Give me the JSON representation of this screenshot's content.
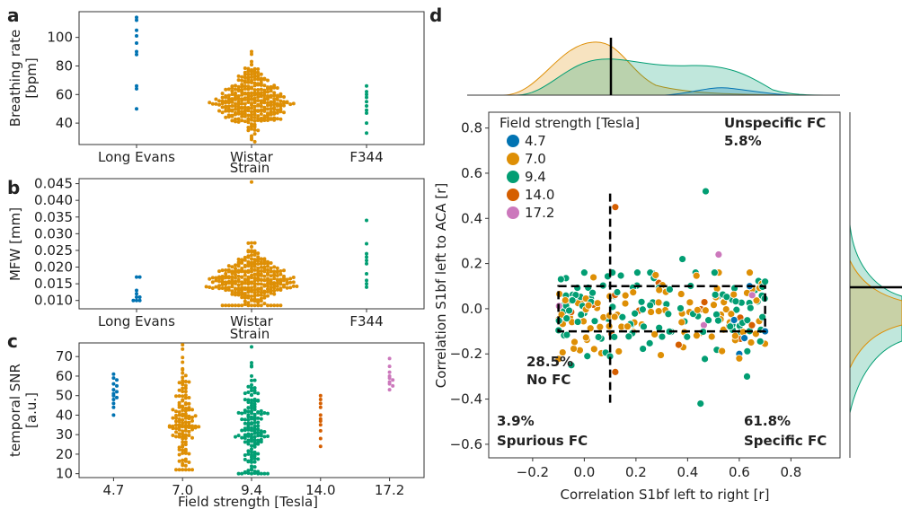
{
  "palette": {
    "4.7": "#0173b2",
    "7.0": "#de8f05",
    "9.4": "#029e73",
    "14.0": "#d55e00",
    "17.2": "#cc78bc"
  },
  "chart_data": [
    {
      "panel": "a",
      "type": "scatter",
      "xlabel": "Strain",
      "ylabel": "Breathing rate\n[bpm]",
      "categories": [
        "Long Evans",
        "Wistar",
        "F344"
      ],
      "yticks": [
        40,
        60,
        80,
        100
      ],
      "ylim": [
        25,
        118
      ],
      "series": [
        {
          "category": "Long Evans",
          "color": "#0173b2",
          "values": [
            114,
            112,
            105,
            101,
            96,
            90,
            88,
            66,
            64,
            50
          ]
        },
        {
          "category": "Wistar",
          "color": "#de8f05",
          "n": 300,
          "center": 55,
          "spread": 11,
          "min": 27,
          "max": 90
        },
        {
          "category": "F344",
          "color": "#029e73",
          "values": [
            66,
            62,
            60,
            58,
            55,
            52,
            49,
            47,
            40,
            33
          ]
        }
      ]
    },
    {
      "panel": "b",
      "type": "scatter",
      "xlabel": "Strain",
      "ylabel": "MFW [mm]",
      "categories": [
        "Long Evans",
        "Wistar",
        "F344"
      ],
      "yticks": [
        0.01,
        0.015,
        0.02,
        0.025,
        0.03,
        0.035,
        0.04,
        0.045
      ],
      "ylim": [
        0.0075,
        0.0465
      ],
      "series": [
        {
          "category": "Long Evans",
          "color": "#0173b2",
          "values": [
            0.017,
            0.017,
            0.013,
            0.012,
            0.011,
            0.011,
            0.01,
            0.01,
            0.01
          ]
        },
        {
          "category": "Wistar",
          "color": "#de8f05",
          "n": 300,
          "center": 0.016,
          "spread": 0.004,
          "min": 0.0085,
          "max": 0.0455
        },
        {
          "category": "F344",
          "color": "#029e73",
          "values": [
            0.034,
            0.027,
            0.024,
            0.023,
            0.022,
            0.021,
            0.018,
            0.016,
            0.015,
            0.014
          ]
        }
      ]
    },
    {
      "panel": "c",
      "type": "scatter",
      "xlabel": "Field strength [Tesla]",
      "ylabel": "temporal SNR\n[a.u.]",
      "categories": [
        "4.7",
        "7.0",
        "9.4",
        "14.0",
        "17.2"
      ],
      "yticks": [
        10,
        20,
        30,
        40,
        50,
        60,
        70
      ],
      "ylim": [
        8,
        77
      ],
      "series": [
        {
          "category": "4.7",
          "color": "#0173b2",
          "values": [
            61,
            59,
            58,
            56,
            55,
            53,
            52,
            51,
            50,
            49,
            48,
            46,
            44,
            40
          ]
        },
        {
          "category": "7.0",
          "color": "#de8f05",
          "n": 130,
          "center": 35,
          "spread": 13,
          "min": 12,
          "max": 76
        },
        {
          "category": "9.4",
          "color": "#029e73",
          "n": 150,
          "center": 33,
          "spread": 14,
          "min": 10,
          "max": 75
        },
        {
          "category": "14.0",
          "color": "#d55e00",
          "values": [
            50,
            48,
            46,
            44,
            40,
            38,
            37,
            35,
            32,
            28,
            24
          ]
        },
        {
          "category": "17.2",
          "color": "#cc78bc",
          "values": [
            69,
            65,
            62,
            60,
            59,
            58,
            57,
            56,
            55,
            53
          ]
        }
      ]
    },
    {
      "panel": "d",
      "type": "scatter",
      "xlabel": "Correlation S1bf left to right [r]",
      "ylabel": "Correlation S1bf left to ACA [r]",
      "xlim": [
        -0.37,
        0.99
      ],
      "ylim": [
        -0.66,
        0.87
      ],
      "xticks": [
        -0.2,
        0.0,
        0.2,
        0.4,
        0.6,
        0.8
      ],
      "yticks": [
        -0.6,
        -0.4,
        -0.2,
        0.0,
        0.2,
        0.4,
        0.6,
        0.8
      ],
      "legend": {
        "title": "Field strength [Tesla]",
        "placement": "top-left",
        "entries": [
          {
            "label": "4.7",
            "color": "#0173b2"
          },
          {
            "label": "7.0",
            "color": "#de8f05"
          },
          {
            "label": "9.4",
            "color": "#029e73"
          },
          {
            "label": "14.0",
            "color": "#d55e00"
          },
          {
            "label": "17.2",
            "color": "#cc78bc"
          }
        ]
      },
      "annotations": [
        {
          "line1": "Unspecific FC",
          "line2": "5.8%"
        },
        {
          "line1": "28.5%",
          "line2": "No FC"
        },
        {
          "line1": "3.9%",
          "line2": "Spurious FC"
        },
        {
          "line1": "61.8%",
          "line2": "Specific FC"
        }
      ],
      "reference_lines": {
        "vertical_x": 0.1,
        "vertical_y_range": [
          -0.42,
          0.51
        ],
        "box_x": [
          -0.1,
          0.7
        ],
        "box_y": [
          -0.1,
          0.1
        ]
      },
      "fixed_points": [
        {
          "x": 0.47,
          "y": 0.52,
          "color": "#029e73"
        },
        {
          "x": 0.12,
          "y": 0.45,
          "color": "#d55e00"
        },
        {
          "x": 0.52,
          "y": 0.24,
          "color": "#cc78bc"
        },
        {
          "x": 0.38,
          "y": 0.22,
          "color": "#029e73"
        },
        {
          "x": 0.45,
          "y": -0.42,
          "color": "#029e73"
        },
        {
          "x": 0.12,
          "y": -0.28,
          "color": "#d55e00"
        },
        {
          "x": -0.05,
          "y": -0.25,
          "color": "#029e73"
        },
        {
          "x": 0.65,
          "y": 0.06,
          "color": "#cc78bc"
        },
        {
          "x": 0.64,
          "y": 0.1,
          "color": "#0173b2"
        },
        {
          "x": 0.7,
          "y": -0.1,
          "color": "#0173b2"
        },
        {
          "x": 0.6,
          "y": -0.2,
          "color": "#0173b2"
        },
        {
          "x": 0.62,
          "y": -0.13,
          "color": "#0173b2"
        },
        {
          "x": 0.7,
          "y": 0.12,
          "color": "#029e73"
        },
        {
          "x": 0.63,
          "y": -0.3,
          "color": "#029e73"
        },
        {
          "x": 0.6,
          "y": -0.22,
          "color": "#de8f05"
        },
        {
          "x": 0.58,
          "y": -0.05,
          "color": "#0173b2"
        }
      ],
      "cloud": {
        "n": 230,
        "xrange": [
          -0.1,
          0.7
        ],
        "ycenter": -0.03,
        "yspread": 0.09,
        "mix": [
          [
            "#029e73",
            0.45
          ],
          [
            "#de8f05",
            0.45
          ],
          [
            "#d55e00",
            0.05
          ],
          [
            "#cc78bc",
            0.05
          ]
        ]
      }
    }
  ],
  "panel_labels": {
    "a": "a",
    "b": "b",
    "c": "c",
    "d": "d"
  }
}
